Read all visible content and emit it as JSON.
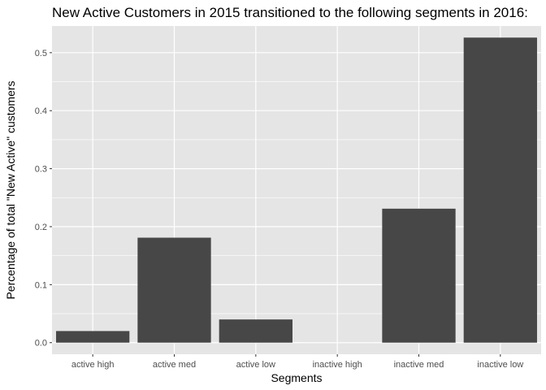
{
  "chart_data": {
    "type": "bar",
    "title": "New Active Customers in 2015 transitioned to the following segments in 2016:",
    "xlabel": "Segments",
    "ylabel": "Percentage of total \"New Active\" customers",
    "categories": [
      "active high",
      "active med",
      "active low",
      "inactive high",
      "inactive med",
      "inactive low"
    ],
    "values": [
      0.02,
      0.181,
      0.04,
      0.0,
      0.231,
      0.526
    ],
    "ylim": [
      -0.02,
      0.546
    ],
    "yticks": [
      0.0,
      0.1,
      0.2,
      0.3,
      0.4,
      0.5
    ],
    "ytick_labels": [
      "0.0",
      "0.1",
      "0.2",
      "0.3",
      "0.4",
      "0.5"
    ],
    "grid": true,
    "colors": {
      "bar": "#474747",
      "panel": "#e5e5e5",
      "grid": "#ffffff"
    }
  }
}
